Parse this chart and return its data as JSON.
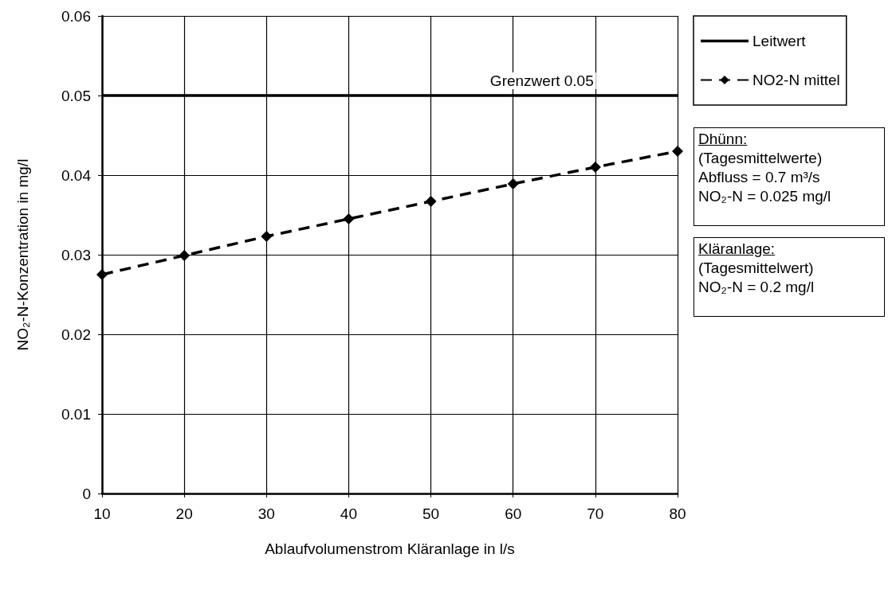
{
  "chart_data": {
    "type": "line",
    "xlabel": "Ablaufvolumenstrom Kläranlage in l/s",
    "ylabel": "NO₂-N-Konzentration in mg/l",
    "x": [
      10,
      20,
      30,
      40,
      50,
      60,
      70,
      80
    ],
    "series": [
      {
        "name": "Leitwert",
        "color": "#000000",
        "x": [
          10,
          80
        ],
        "values": [
          0.05,
          0.05
        ],
        "marker": "none",
        "line_style": "solid"
      },
      {
        "name": "NO2-N mittel",
        "color": "#000000",
        "values": [
          0.0275,
          0.0299,
          0.0323,
          0.0345,
          0.0367,
          0.0389,
          0.041,
          0.043
        ],
        "marker": "diamond",
        "line_style": "dashed"
      }
    ],
    "xlim": [
      10,
      80
    ],
    "xticks": [
      10,
      20,
      30,
      40,
      50,
      60,
      70,
      80
    ],
    "ylim": [
      0,
      0.06
    ],
    "yticks": [
      0,
      0.01,
      0.02,
      0.03,
      0.04,
      0.05,
      0.06
    ],
    "grid": true,
    "legend": "top right",
    "annotations": [
      {
        "text": "Grenzwert 0.05",
        "x": 63.5,
        "y": 0.05
      },
      "Dhünn:\n(Tagesmittelwerte)\nAbfluss = 0.7 m³/s\nNO₂-N = 0.025 mg/l",
      "Kläranlage:\n(Tagesmittelwert)\nNO₂-N = 0.2 mg/l"
    ]
  }
}
